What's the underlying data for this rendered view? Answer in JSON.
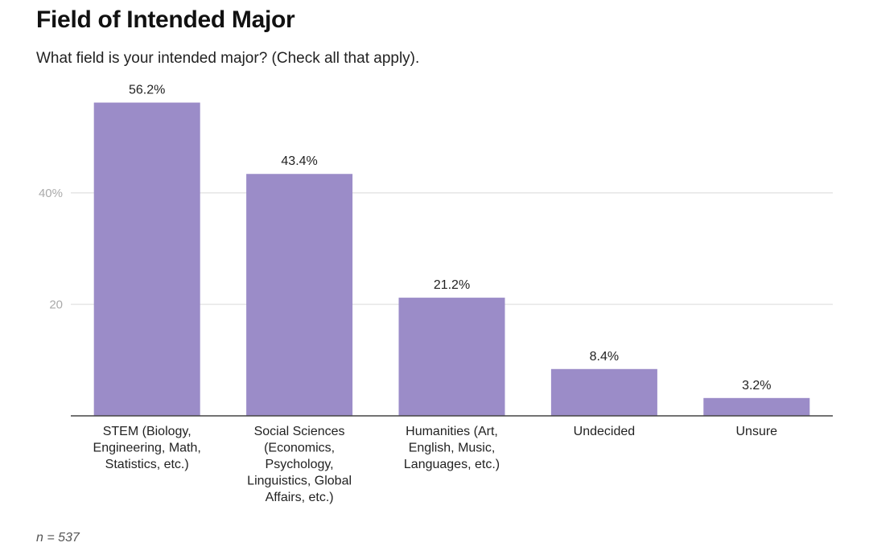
{
  "chart_data": {
    "type": "bar",
    "title": "Field of Intended Major",
    "subtitle": "What field is your intended major? (Check all that apply).",
    "xlabel": "",
    "ylabel": "",
    "ylim": [
      0,
      58.5
    ],
    "grid": true,
    "yticks": [
      {
        "value": 20,
        "label": "20"
      },
      {
        "value": 40,
        "label": "40%"
      }
    ],
    "categories": [
      [
        "STEM (Biology,",
        "Engineering, Math,",
        "Statistics, etc.)"
      ],
      [
        "Social Sciences",
        "(Economics,",
        "Psychology,",
        "Linguistics, Global",
        "Affairs, etc.)"
      ],
      [
        "Humanities (Art,",
        "English, Music,",
        "Languages, etc.)"
      ],
      [
        "Undecided"
      ],
      [
        "Unsure"
      ]
    ],
    "values": [
      56.2,
      43.4,
      21.2,
      8.4,
      3.2
    ],
    "data_labels": [
      "56.2%",
      "43.4%",
      "21.2%",
      "8.4%",
      "3.2%"
    ],
    "bar_color": "#9b8cc8",
    "footnote": "n = 537"
  }
}
